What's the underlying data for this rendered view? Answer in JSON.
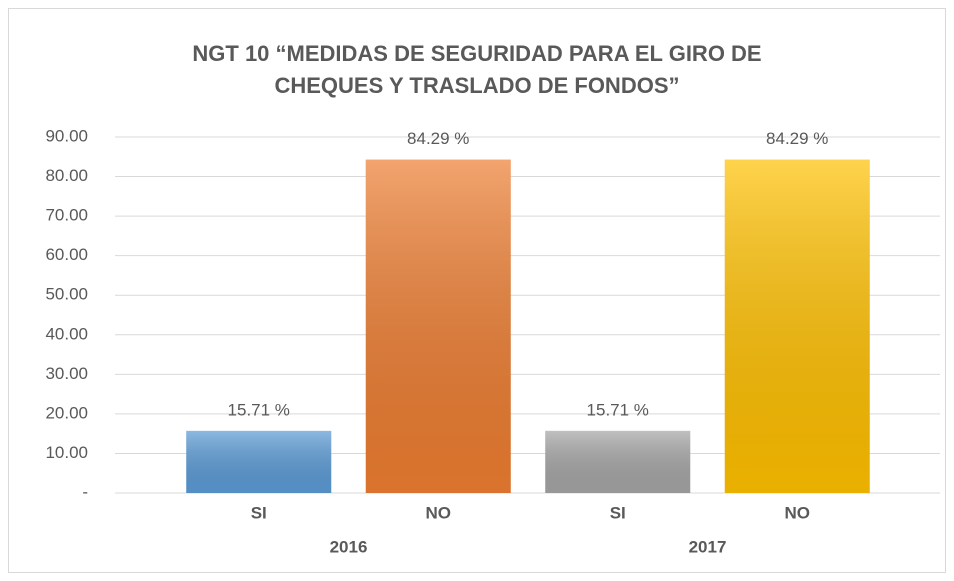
{
  "chart_data": {
    "type": "bar",
    "title": "NGT 10 “MEDIDAS DE SEGURIDAD PARA EL GIRO DE CHEQUES Y TRASLADO DE FONDOS”",
    "categories": [
      "SI",
      "NO",
      "SI",
      "NO"
    ],
    "groups": [
      "2016",
      "2017"
    ],
    "values": [
      15.71,
      84.29,
      15.71,
      84.29
    ],
    "value_labels": [
      "15.71 %",
      "84.29 %",
      "15.71 %",
      "84.29 %"
    ],
    "colors": [
      "#5b9bd5",
      "#ed7d31",
      "#a5a5a5",
      "#ffc000"
    ],
    "ylim": [
      0,
      90
    ],
    "yticks": [
      {
        "value": 0,
        "label": "-"
      },
      {
        "value": 10,
        "label": "10.00"
      },
      {
        "value": 20,
        "label": "20.00"
      },
      {
        "value": 30,
        "label": "30.00"
      },
      {
        "value": 40,
        "label": "40.00"
      },
      {
        "value": 50,
        "label": "50.00"
      },
      {
        "value": 60,
        "label": "60.00"
      },
      {
        "value": 70,
        "label": "70.00"
      },
      {
        "value": 80,
        "label": "80.00"
      },
      {
        "value": 90,
        "label": "90.00"
      }
    ],
    "grid": true
  }
}
